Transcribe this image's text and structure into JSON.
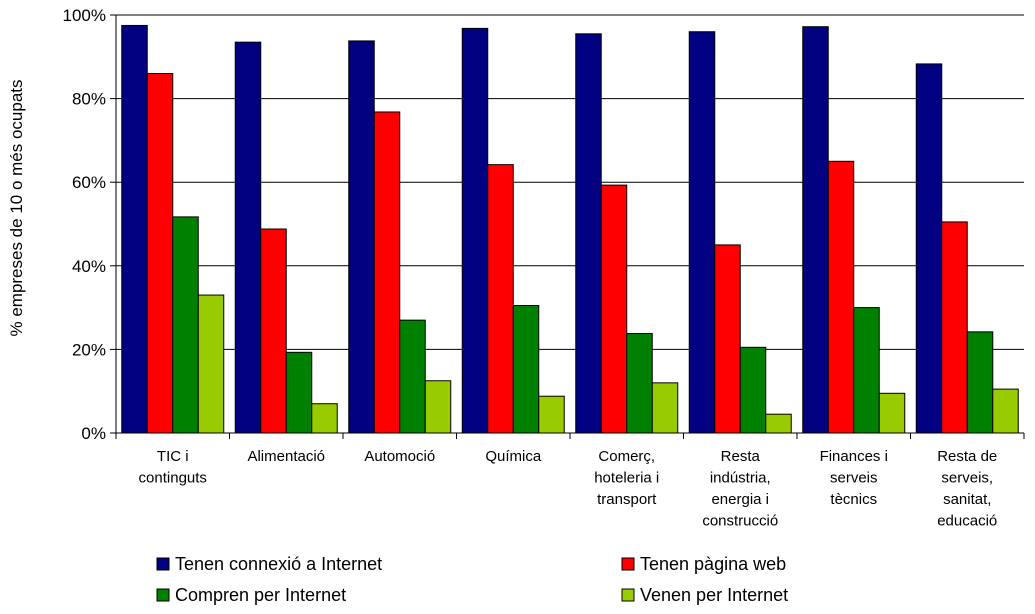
{
  "chart_data": {
    "type": "bar",
    "title": "",
    "xlabel": "",
    "ylabel": "% empreses de 10 o més ocupats",
    "ylim": [
      0,
      100
    ],
    "yticks": [
      0,
      20,
      40,
      60,
      80,
      100
    ],
    "ytick_labels": [
      "0%",
      "20%",
      "40%",
      "60%",
      "80%",
      "100%"
    ],
    "grid": true,
    "legend_position": "bottom",
    "categories": [
      [
        "TIC i",
        "continguts"
      ],
      [
        "Alimentació"
      ],
      [
        "Automoció"
      ],
      [
        "Química"
      ],
      [
        "Comerç,",
        "hoteleria i",
        "transport"
      ],
      [
        "Resta",
        "indústria,",
        "energia i",
        "construcció"
      ],
      [
        "Finances i",
        "serveis",
        "tècnics"
      ],
      [
        "Resta de",
        "serveis,",
        "sanitat,",
        "educació"
      ]
    ],
    "series": [
      {
        "name": "Tenen connexió a Internet",
        "color": "#000080",
        "values": [
          97.5,
          93.5,
          93.8,
          96.8,
          95.5,
          96.0,
          97.2,
          88.3
        ]
      },
      {
        "name": "Tenen pàgina web",
        "color": "#ff0000",
        "values": [
          86.0,
          48.8,
          76.8,
          64.2,
          59.3,
          45.0,
          65.0,
          50.5
        ]
      },
      {
        "name": "Compren per Internet",
        "color": "#008000",
        "values": [
          51.7,
          19.3,
          27.0,
          30.5,
          23.8,
          20.5,
          30.0,
          24.2
        ]
      },
      {
        "name": "Venen per Internet",
        "color": "#99cc00",
        "values": [
          33.0,
          7.0,
          12.5,
          8.8,
          12.0,
          4.5,
          9.5,
          10.5
        ]
      }
    ]
  }
}
